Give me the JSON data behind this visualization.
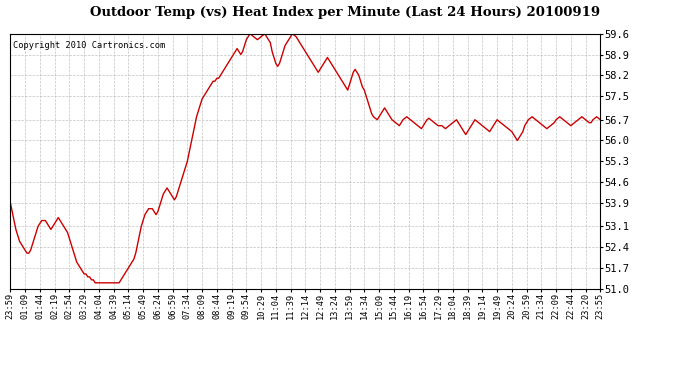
{
  "title": "Outdoor Temp (vs) Heat Index per Minute (Last 24 Hours) 20100919",
  "copyright": "Copyright 2010 Cartronics.com",
  "line_color": "#cc0000",
  "background_color": "#ffffff",
  "grid_color": "#aaaaaa",
  "ylim": [
    51.0,
    59.6
  ],
  "yticks": [
    51.0,
    51.7,
    52.4,
    53.1,
    53.9,
    54.6,
    55.3,
    56.0,
    56.7,
    57.5,
    58.2,
    58.9,
    59.6
  ],
  "xtick_labels": [
    "23:59",
    "01:09",
    "01:44",
    "02:19",
    "02:54",
    "03:29",
    "04:04",
    "04:39",
    "05:14",
    "05:49",
    "06:24",
    "06:59",
    "07:34",
    "08:09",
    "08:44",
    "09:19",
    "09:54",
    "10:29",
    "11:04",
    "11:39",
    "12:14",
    "12:49",
    "13:24",
    "13:59",
    "14:34",
    "15:09",
    "15:44",
    "16:19",
    "16:54",
    "17:29",
    "18:04",
    "18:39",
    "19:14",
    "19:49",
    "20:24",
    "20:59",
    "21:34",
    "22:09",
    "22:44",
    "23:20",
    "23:55"
  ],
  "line_width": 1.0,
  "data_y": [
    53.9,
    53.6,
    53.3,
    53.0,
    52.8,
    52.6,
    52.5,
    52.4,
    52.3,
    52.2,
    52.2,
    52.3,
    52.5,
    52.7,
    52.9,
    53.1,
    53.2,
    53.3,
    53.3,
    53.3,
    53.2,
    53.1,
    53.0,
    53.1,
    53.2,
    53.3,
    53.4,
    53.3,
    53.2,
    53.1,
    53.0,
    52.9,
    52.7,
    52.5,
    52.3,
    52.1,
    51.9,
    51.8,
    51.7,
    51.6,
    51.5,
    51.5,
    51.4,
    51.4,
    51.3,
    51.3,
    51.2,
    51.2,
    51.2,
    51.2,
    51.2,
    51.2,
    51.2,
    51.2,
    51.2,
    51.2,
    51.2,
    51.2,
    51.2,
    51.2,
    51.3,
    51.4,
    51.5,
    51.6,
    51.7,
    51.8,
    51.9,
    52.0,
    52.2,
    52.5,
    52.8,
    53.1,
    53.3,
    53.5,
    53.6,
    53.7,
    53.7,
    53.7,
    53.6,
    53.5,
    53.6,
    53.8,
    54.0,
    54.2,
    54.3,
    54.4,
    54.3,
    54.2,
    54.1,
    54.0,
    54.1,
    54.3,
    54.5,
    54.7,
    54.9,
    55.1,
    55.3,
    55.6,
    55.9,
    56.2,
    56.5,
    56.8,
    57.0,
    57.2,
    57.4,
    57.5,
    57.6,
    57.7,
    57.8,
    57.9,
    58.0,
    58.0,
    58.1,
    58.1,
    58.2,
    58.3,
    58.4,
    58.5,
    58.6,
    58.7,
    58.8,
    58.9,
    59.0,
    59.1,
    59.0,
    58.9,
    59.0,
    59.2,
    59.4,
    59.5,
    59.6,
    59.55,
    59.5,
    59.45,
    59.4,
    59.45,
    59.5,
    59.55,
    59.6,
    59.5,
    59.4,
    59.3,
    59.0,
    58.8,
    58.6,
    58.5,
    58.6,
    58.8,
    59.0,
    59.2,
    59.3,
    59.4,
    59.5,
    59.6,
    59.55,
    59.5,
    59.4,
    59.3,
    59.2,
    59.1,
    59.0,
    58.9,
    58.8,
    58.7,
    58.6,
    58.5,
    58.4,
    58.3,
    58.4,
    58.5,
    58.6,
    58.7,
    58.8,
    58.7,
    58.6,
    58.5,
    58.4,
    58.3,
    58.2,
    58.1,
    58.0,
    57.9,
    57.8,
    57.7,
    57.9,
    58.1,
    58.3,
    58.4,
    58.3,
    58.2,
    58.0,
    57.8,
    57.7,
    57.5,
    57.3,
    57.1,
    56.9,
    56.8,
    56.75,
    56.7,
    56.8,
    56.9,
    57.0,
    57.1,
    57.0,
    56.9,
    56.8,
    56.7,
    56.65,
    56.6,
    56.55,
    56.5,
    56.6,
    56.7,
    56.75,
    56.8,
    56.75,
    56.7,
    56.65,
    56.6,
    56.55,
    56.5,
    56.45,
    56.4,
    56.5,
    56.6,
    56.7,
    56.75,
    56.7,
    56.65,
    56.6,
    56.55,
    56.5,
    56.5,
    56.5,
    56.45,
    56.4,
    56.45,
    56.5,
    56.55,
    56.6,
    56.65,
    56.7,
    56.6,
    56.5,
    56.4,
    56.3,
    56.2,
    56.3,
    56.4,
    56.5,
    56.6,
    56.7,
    56.65,
    56.6,
    56.55,
    56.5,
    56.45,
    56.4,
    56.35,
    56.3,
    56.4,
    56.5,
    56.6,
    56.7,
    56.65,
    56.6,
    56.55,
    56.5,
    56.45,
    56.4,
    56.35,
    56.3,
    56.2,
    56.1,
    56.0,
    56.1,
    56.2,
    56.3,
    56.5,
    56.6,
    56.7,
    56.75,
    56.8,
    56.75,
    56.7,
    56.65,
    56.6,
    56.55,
    56.5,
    56.45,
    56.4,
    56.45,
    56.5,
    56.55,
    56.6,
    56.7,
    56.75,
    56.8,
    56.75,
    56.7,
    56.65,
    56.6,
    56.55,
    56.5,
    56.55,
    56.6,
    56.65,
    56.7,
    56.75,
    56.8,
    56.75,
    56.7,
    56.65,
    56.6,
    56.6,
    56.7,
    56.75,
    56.8,
    56.75,
    56.7
  ]
}
